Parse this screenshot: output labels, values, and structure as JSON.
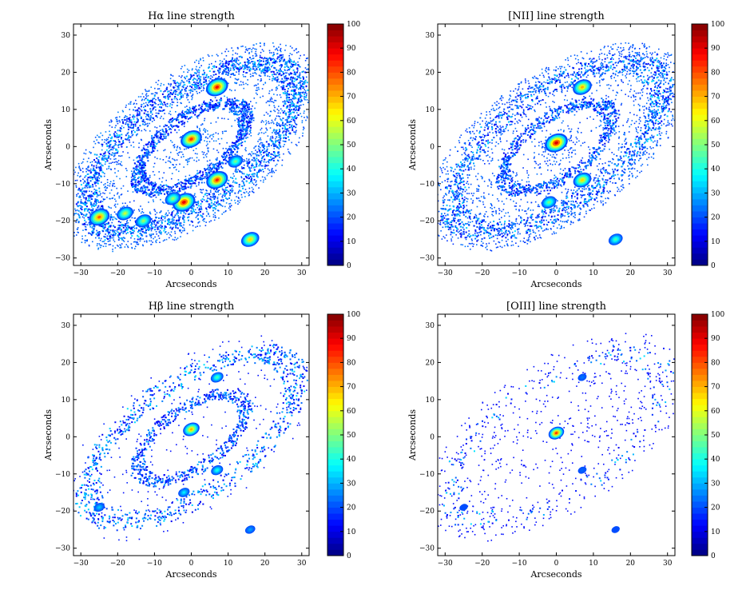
{
  "chart_data": [
    {
      "type": "heatmap",
      "title": "Hα line strength",
      "xlabel": "Arcseconds",
      "ylabel": "Arcseconds",
      "xlim": [
        -32,
        32
      ],
      "ylim": [
        -32,
        33
      ],
      "xticks": [
        "−30",
        "−20",
        "−10",
        "0",
        "10",
        "20",
        "30"
      ],
      "yticks": [
        "−30",
        "−20",
        "−10",
        "0",
        "10",
        "20",
        "30"
      ],
      "colorbar": {
        "min": 0,
        "max": 100,
        "ticks": [
          "0",
          "10",
          "20",
          "30",
          "40",
          "50",
          "60",
          "70",
          "80",
          "90",
          "100"
        ],
        "colormap": "jet"
      },
      "grid": false,
      "bright_knots": [
        {
          "x": 7,
          "y": 16,
          "v": 95
        },
        {
          "x": 0,
          "y": 2,
          "v": 90
        },
        {
          "x": -2,
          "y": -15,
          "v": 98
        },
        {
          "x": 7,
          "y": -9,
          "v": 92
        },
        {
          "x": -25,
          "y": -19,
          "v": 85
        },
        {
          "x": 16,
          "y": -25,
          "v": 70
        },
        {
          "x": -18,
          "y": -18,
          "v": 60
        },
        {
          "x": -13,
          "y": -20,
          "v": 55
        },
        {
          "x": 12,
          "y": -4,
          "v": 50
        },
        {
          "x": -5,
          "y": -14,
          "v": 55
        }
      ]
    },
    {
      "type": "heatmap",
      "title": "[NII] line strength",
      "xlabel": "Arcseconds",
      "ylabel": "Arcseconds",
      "xlim": [
        -32,
        32
      ],
      "ylim": [
        -32,
        33
      ],
      "xticks": [
        "−30",
        "−20",
        "−10",
        "0",
        "10",
        "20",
        "30"
      ],
      "yticks": [
        "−30",
        "−20",
        "−10",
        "0",
        "10",
        "20",
        "30"
      ],
      "colorbar": {
        "min": 0,
        "max": 100,
        "ticks": [
          "0",
          "10",
          "20",
          "30",
          "40",
          "50",
          "60",
          "70",
          "80",
          "90",
          "100"
        ],
        "colormap": "jet"
      },
      "grid": false,
      "bright_knots": [
        {
          "x": 0,
          "y": 1,
          "v": 100
        },
        {
          "x": 7,
          "y": 16,
          "v": 75
        },
        {
          "x": 7,
          "y": -9,
          "v": 70
        },
        {
          "x": -2,
          "y": -15,
          "v": 50
        },
        {
          "x": 16,
          "y": -25,
          "v": 45
        }
      ]
    },
    {
      "type": "heatmap",
      "title": "Hβ line strength",
      "xlabel": "Arcseconds",
      "ylabel": "Arcseconds",
      "xlim": [
        -32,
        32
      ],
      "ylim": [
        -32,
        33
      ],
      "xticks": [
        "−30",
        "−20",
        "−10",
        "0",
        "10",
        "20",
        "30"
      ],
      "yticks": [
        "−30",
        "−20",
        "−10",
        "0",
        "10",
        "20",
        "30"
      ],
      "colorbar": {
        "min": 0,
        "max": 100,
        "ticks": [
          "0",
          "10",
          "20",
          "30",
          "40",
          "50",
          "60",
          "70",
          "80",
          "90",
          "100"
        ],
        "colormap": "jet"
      },
      "grid": false,
      "bright_knots": [
        {
          "x": 0,
          "y": 2,
          "v": 75
        },
        {
          "x": 7,
          "y": 16,
          "v": 45
        },
        {
          "x": 7,
          "y": -9,
          "v": 40
        },
        {
          "x": -2,
          "y": -15,
          "v": 35
        },
        {
          "x": -25,
          "y": -19,
          "v": 30
        },
        {
          "x": 16,
          "y": -25,
          "v": 25
        }
      ]
    },
    {
      "type": "heatmap",
      "title": "[OIII] line strength",
      "xlabel": "Arcseconds",
      "ylabel": "Arcseconds",
      "xlim": [
        -32,
        32
      ],
      "ylim": [
        -32,
        33
      ],
      "xticks": [
        "−30",
        "−20",
        "−10",
        "0",
        "10",
        "20",
        "30"
      ],
      "yticks": [
        "−30",
        "−20",
        "−10",
        "0",
        "10",
        "20",
        "30"
      ],
      "colorbar": {
        "min": 0,
        "max": 100,
        "ticks": [
          "0",
          "10",
          "20",
          "30",
          "40",
          "50",
          "60",
          "70",
          "80",
          "90",
          "100"
        ],
        "colormap": "jet"
      },
      "grid": false,
      "bright_knots": [
        {
          "x": 0,
          "y": 1,
          "v": 90
        },
        {
          "x": 7,
          "y": 16,
          "v": 20
        },
        {
          "x": 7,
          "y": -9,
          "v": 18
        },
        {
          "x": -25,
          "y": -19,
          "v": 15
        },
        {
          "x": 16,
          "y": -25,
          "v": 15
        }
      ]
    }
  ]
}
